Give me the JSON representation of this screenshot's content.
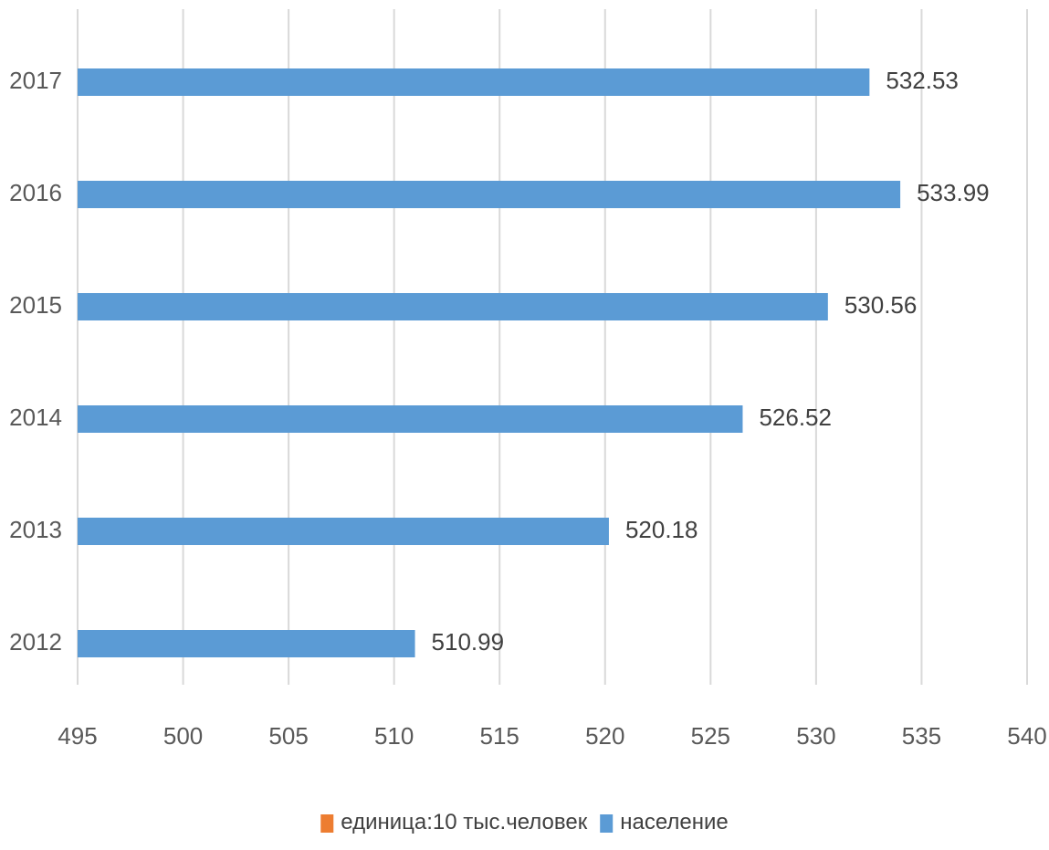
{
  "chart_data": {
    "type": "bar",
    "orientation": "horizontal",
    "categories": [
      "2012",
      "2013",
      "2014",
      "2015",
      "2016",
      "2017"
    ],
    "series": [
      {
        "name": "население",
        "color": "#5b9bd5",
        "values": [
          510.99,
          520.18,
          526.52,
          530.56,
          533.99,
          532.53
        ]
      }
    ],
    "data_labels": [
      "510.99",
      "520.18",
      "526.52",
      "530.56",
      "533.99",
      "532.53"
    ],
    "xlim": [
      495,
      540
    ],
    "x_ticks": [
      495,
      500,
      505,
      510,
      515,
      520,
      525,
      530,
      535,
      540
    ],
    "x_tick_labels": [
      "495",
      "500",
      "505",
      "510",
      "515",
      "520",
      "525",
      "530",
      "535",
      "540"
    ],
    "title": "",
    "xlabel": "",
    "ylabel": "",
    "grid": "vertical",
    "legend": {
      "position": "bottom",
      "entries": [
        {
          "label": "единица:10 тыс.человек",
          "color": "#ed7d31"
        },
        {
          "label": "население",
          "color": "#5b9bd5"
        }
      ]
    }
  }
}
